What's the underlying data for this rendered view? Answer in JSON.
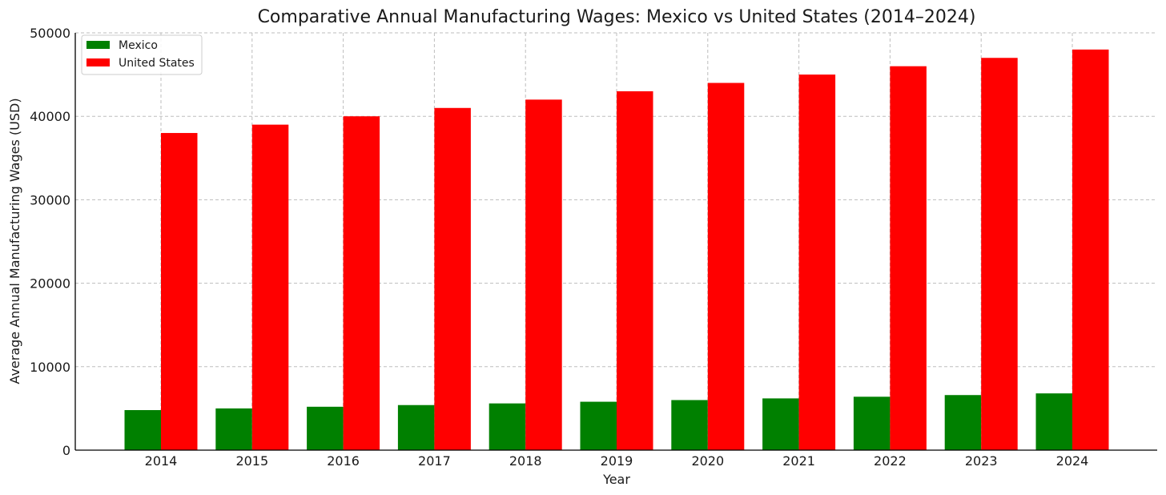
{
  "chart_data": {
    "type": "bar",
    "title": "Comparative Annual Manufacturing Wages: Mexico vs United States (2014–2024)",
    "xlabel": "Year",
    "ylabel": "Average Annual Manufacturing Wages (USD)",
    "categories": [
      "2014",
      "2015",
      "2016",
      "2017",
      "2018",
      "2019",
      "2020",
      "2021",
      "2022",
      "2023",
      "2024"
    ],
    "series": [
      {
        "name": "Mexico",
        "color": "#008000",
        "values": [
          4800,
          5000,
          5200,
          5400,
          5600,
          5800,
          6000,
          6200,
          6400,
          6600,
          6800
        ]
      },
      {
        "name": "United States",
        "color": "#ff0000",
        "values": [
          38000,
          39000,
          40000,
          41000,
          42000,
          43000,
          44000,
          45000,
          46000,
          47000,
          48000
        ]
      }
    ],
    "ylim": [
      0,
      50000
    ],
    "yticks": [
      "0",
      "10000",
      "20000",
      "30000",
      "40000",
      "50000"
    ],
    "yticks_values": [
      0,
      10000,
      20000,
      30000,
      40000,
      50000
    ],
    "grid": true,
    "legend_position": "top-left"
  }
}
